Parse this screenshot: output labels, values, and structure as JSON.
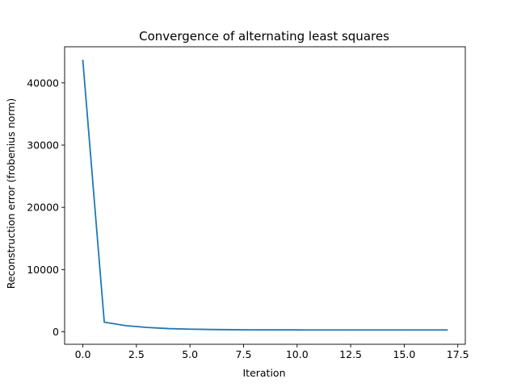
{
  "chart_data": {
    "type": "line",
    "title": "Convergence of alternating least squares",
    "xlabel": "Iteration",
    "ylabel": "Reconstruction error (frobenius norm)",
    "xlim": [
      -0.85,
      17.85
    ],
    "ylim": [
      -2000,
      45800
    ],
    "xticks": [
      0,
      2.5,
      5,
      7.5,
      10,
      12.5,
      15,
      17.5
    ],
    "xtick_labels": [
      "0.0",
      "2.5",
      "5.0",
      "7.5",
      "10.0",
      "12.5",
      "15.0",
      "17.5"
    ],
    "yticks": [
      0,
      10000,
      20000,
      30000,
      40000
    ],
    "ytick_labels": [
      "0",
      "10000",
      "20000",
      "30000",
      "40000"
    ],
    "grid": false,
    "legend": "none",
    "series": [
      {
        "color": "#1f77b4",
        "x": [
          0,
          1,
          2,
          3,
          4,
          5,
          6,
          7,
          8,
          9,
          10,
          11,
          12,
          13,
          14,
          15,
          16,
          17
        ],
        "y": [
          43600,
          1550,
          1000,
          700,
          520,
          430,
          370,
          340,
          320,
          310,
          305,
          300,
          300,
          300,
          300,
          300,
          300,
          300
        ]
      }
    ]
  }
}
